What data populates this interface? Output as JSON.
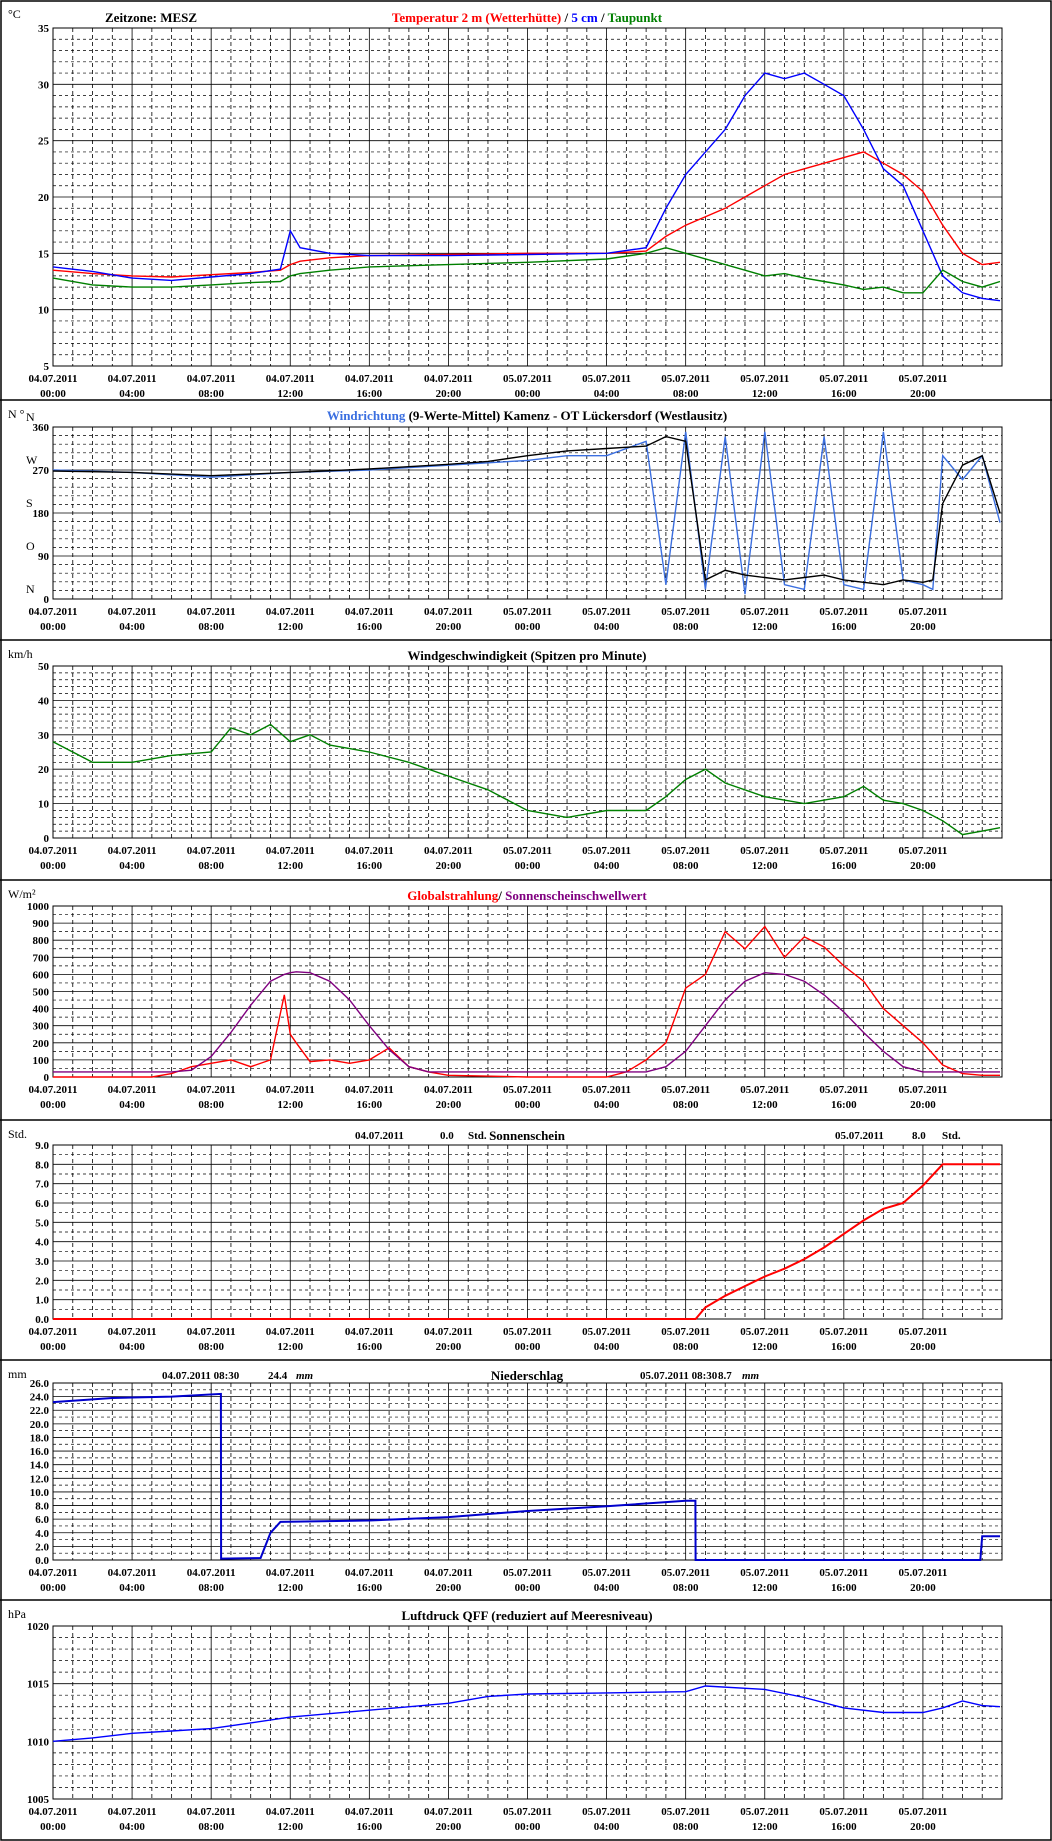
{
  "colors": {
    "temp2m": "#ff0000",
    "temp5cm": "#0000ff",
    "taupunkt": "#008000",
    "windrichtung": "#3b6fe0",
    "windrichtung_mittel": "#000000",
    "wind": "#008000",
    "global": "#ff0000",
    "schwelle": "#800080",
    "sonne": "#ff0000",
    "niederschlag": "#0000cc",
    "luftdruck": "#0000ff"
  },
  "x_tick_labels": [
    {
      "date": "04.07.2011",
      "time": "00:00"
    },
    {
      "date": "04.07.2011",
      "time": "04:00"
    },
    {
      "date": "04.07.2011",
      "time": "08:00"
    },
    {
      "date": "04.07.2011",
      "time": "12:00"
    },
    {
      "date": "04.07.2011",
      "time": "16:00"
    },
    {
      "date": "04.07.2011",
      "time": "20:00"
    },
    {
      "date": "05.07.2011",
      "time": "00:00"
    },
    {
      "date": "05.07.2011",
      "time": "04:00"
    },
    {
      "date": "05.07.2011",
      "time": "08:00"
    },
    {
      "date": "05.07.2011",
      "time": "12:00"
    },
    {
      "date": "05.07.2011",
      "time": "16:00"
    },
    {
      "date": "05.07.2011",
      "time": "20:00"
    }
  ],
  "chart_data": [
    {
      "type": "line",
      "unit": "°C",
      "zeitzone": "Zeitzone: MESZ",
      "title_parts": [
        {
          "text": "Temperatur 2 m (Wetterhütte)",
          "color": "#ff0000"
        },
        {
          "text": " / ",
          "color": "#000000"
        },
        {
          "text": "5 cm",
          "color": "#0000ff"
        },
        {
          "text": " / ",
          "color": "#000000"
        },
        {
          "text": "Taupunkt",
          "color": "#008000"
        }
      ],
      "ylim": [
        5,
        35
      ],
      "yticks": [
        "5",
        "10",
        "15",
        "20",
        "25",
        "30",
        "35"
      ],
      "x_hours": [
        0,
        2,
        4,
        6,
        8,
        10,
        11.5,
        12,
        12.5,
        14,
        16,
        20,
        24,
        28,
        30,
        31,
        32,
        34,
        35,
        36,
        37,
        38,
        39,
        40,
        41,
        42,
        43,
        44,
        45,
        46,
        47,
        47.9
      ],
      "series": [
        {
          "name": "Temperatur 2 m (Wetterhütte)",
          "values": [
            13.5,
            13.2,
            13.0,
            12.9,
            13.1,
            13.3,
            13.5,
            14.0,
            14.3,
            14.6,
            14.8,
            14.9,
            15.0,
            15.0,
            15.2,
            16.5,
            17.5,
            19.0,
            20.0,
            21.0,
            22.0,
            22.5,
            23.0,
            23.5,
            24.0,
            23.0,
            22.0,
            20.5,
            17.5,
            15.0,
            14.0,
            14.2
          ]
        },
        {
          "name": "5 cm",
          "values": [
            13.8,
            13.4,
            12.8,
            12.6,
            12.9,
            13.2,
            13.6,
            17.0,
            15.5,
            15.0,
            14.8,
            14.8,
            14.9,
            15.0,
            15.5,
            19.0,
            22.0,
            26.0,
            29.0,
            31.0,
            30.5,
            31.0,
            30.0,
            29.0,
            26.0,
            22.5,
            21.0,
            17.0,
            13.0,
            11.5,
            11.0,
            10.8
          ]
        },
        {
          "name": "Taupunkt",
          "values": [
            12.8,
            12.2,
            12.0,
            12.0,
            12.2,
            12.4,
            12.5,
            13.0,
            13.2,
            13.5,
            13.8,
            14.0,
            14.2,
            14.5,
            15.0,
            15.5,
            15.0,
            14.0,
            13.5,
            13.0,
            13.2,
            12.8,
            12.5,
            12.2,
            11.8,
            12.0,
            11.5,
            11.5,
            13.5,
            12.5,
            12.0,
            12.5
          ]
        }
      ]
    },
    {
      "type": "line",
      "unit": "N °",
      "title_parts": [
        {
          "text": "Windrichtung",
          "color": "#3b6fe0"
        },
        {
          "text": " (9-Werte-Mittel)",
          "color": "#000000"
        },
        {
          "text": "          Kamenz - OT Lückersdorf (Westlausitz)",
          "color": "#000000"
        }
      ],
      "ylim": [
        0,
        360
      ],
      "yticks": [
        "0",
        "90",
        "180",
        "270",
        "360"
      ],
      "compass": [
        "N",
        "O",
        "S",
        "W",
        "N"
      ],
      "x_hours": [
        0,
        4,
        8,
        12,
        16,
        20,
        22,
        24,
        26,
        28,
        30,
        31,
        32,
        33,
        34,
        35,
        36,
        37,
        38,
        39,
        40,
        41,
        42,
        43,
        44,
        44.5,
        45,
        46,
        47,
        47.9
      ],
      "series": [
        {
          "name": "Windrichtung",
          "values": [
            270,
            265,
            255,
            265,
            270,
            280,
            285,
            290,
            300,
            300,
            330,
            30,
            350,
            20,
            340,
            10,
            350,
            30,
            20,
            340,
            30,
            20,
            350,
            40,
            30,
            20,
            300,
            250,
            300,
            160
          ]
        },
        {
          "name": "9-Werte-Mittel",
          "values": [
            268,
            265,
            258,
            265,
            272,
            282,
            288,
            300,
            310,
            315,
            320,
            340,
            330,
            40,
            60,
            50,
            45,
            40,
            45,
            50,
            40,
            35,
            30,
            40,
            35,
            40,
            200,
            280,
            300,
            180
          ]
        }
      ]
    },
    {
      "type": "line",
      "unit": "km/h",
      "title_parts": [
        {
          "text": "Windgeschwindigkeit (Spitzen pro Minute)",
          "color": "#000000"
        }
      ],
      "ylim": [
        0,
        50
      ],
      "yticks": [
        "0",
        "10",
        "20",
        "30",
        "40",
        "50"
      ],
      "x_hours": [
        0,
        2,
        4,
        6,
        8,
        9,
        10,
        11,
        12,
        13,
        14,
        16,
        18,
        20,
        22,
        24,
        26,
        28,
        30,
        31,
        32,
        33,
        34,
        36,
        38,
        40,
        41,
        42,
        43,
        44,
        45,
        46,
        47,
        47.9
      ],
      "series": [
        {
          "name": "Windgeschwindigkeit",
          "values": [
            28,
            22,
            22,
            24,
            25,
            32,
            30,
            33,
            28,
            30,
            27,
            25,
            22,
            18,
            14,
            8,
            6,
            8,
            8,
            12,
            17,
            20,
            16,
            12,
            10,
            12,
            15,
            11,
            10,
            8,
            5,
            1,
            2,
            3
          ]
        }
      ]
    },
    {
      "type": "line",
      "unit": "W/m²",
      "title_parts": [
        {
          "text": "Globalstrahlung",
          "color": "#ff0000"
        },
        {
          "text": "/ ",
          "color": "#000000"
        },
        {
          "text": "Sonnenscheinschwellwert",
          "color": "#800080"
        }
      ],
      "ylim": [
        0,
        1000
      ],
      "yticks": [
        "0",
        "100",
        "200",
        "300",
        "400",
        "500",
        "600",
        "700",
        "800",
        "900",
        "1000"
      ],
      "x_hours": [
        0,
        5,
        6,
        7,
        8,
        9,
        10,
        11,
        11.7,
        12,
        12.3,
        13,
        14,
        15,
        16,
        17,
        18,
        19,
        20,
        24,
        28,
        29,
        30,
        31,
        32,
        33,
        34,
        35,
        36,
        37,
        38,
        39,
        40,
        41,
        42,
        43,
        44,
        45,
        46,
        47,
        47.9
      ],
      "series": [
        {
          "name": "Globalstrahlung",
          "values": [
            0,
            0,
            20,
            60,
            80,
            100,
            60,
            100,
            480,
            250,
            200,
            90,
            100,
            80,
            100,
            170,
            60,
            30,
            10,
            0,
            0,
            30,
            100,
            200,
            520,
            600,
            850,
            750,
            880,
            700,
            820,
            760,
            650,
            560,
            400,
            300,
            200,
            70,
            20,
            10,
            10
          ]
        },
        {
          "name": "Sonnenscheinschwellwert",
          "values": [
            30,
            30,
            30,
            40,
            120,
            260,
            420,
            560,
            600,
            610,
            615,
            610,
            560,
            450,
            300,
            160,
            60,
            30,
            30,
            30,
            30,
            30,
            30,
            60,
            150,
            300,
            450,
            560,
            610,
            600,
            560,
            480,
            380,
            260,
            150,
            60,
            30,
            30,
            30,
            30,
            30
          ]
        }
      ]
    },
    {
      "type": "line",
      "unit": "Std.",
      "title_parts": [
        {
          "text": "Sonnenschein",
          "color": "#000000"
        }
      ],
      "annotations": [
        {
          "date": "04.07.2011",
          "value": "0.0",
          "unit": "Std."
        },
        {
          "date": "05.07.2011",
          "value": "8.0",
          "unit": "Std."
        }
      ],
      "ylim": [
        0,
        9
      ],
      "yticks": [
        "0.0",
        "1.0",
        "2.0",
        "3.0",
        "4.0",
        "5.0",
        "6.0",
        "7.0",
        "8.0",
        "9.0"
      ],
      "x_hours": [
        0,
        24,
        32.5,
        33,
        34,
        35,
        36,
        37,
        38,
        39,
        40,
        41,
        42,
        43,
        44,
        45,
        46,
        47.9
      ],
      "series": [
        {
          "name": "Sonnenschein",
          "values": [
            0,
            0,
            0,
            0.6,
            1.2,
            1.7,
            2.2,
            2.6,
            3.1,
            3.7,
            4.4,
            5.1,
            5.7,
            6.0,
            6.9,
            8.0,
            8.0,
            8.0
          ]
        }
      ]
    },
    {
      "type": "line",
      "unit": "mm",
      "title_parts": [
        {
          "text": "Niederschlag",
          "color": "#000000"
        }
      ],
      "annotations": [
        {
          "date": "04.07.2011 08:30",
          "value": "24.4",
          "unit": "mm"
        },
        {
          "date": "05.07.2011 08:30",
          "value": "8.7",
          "unit": "mm"
        }
      ],
      "ylim": [
        0,
        26
      ],
      "yticks": [
        "0.0",
        "2.0",
        "4.0",
        "6.0",
        "8.0",
        "10.0",
        "12.0",
        "14.0",
        "16.0",
        "18.0",
        "20.0",
        "22.0",
        "24.0",
        "26.0"
      ],
      "x_hours": [
        0,
        3,
        6,
        8.49,
        8.5,
        10.5,
        11.0,
        11.5,
        16,
        20,
        24,
        28,
        32,
        32.49,
        32.5,
        46.9,
        47,
        47.9
      ],
      "series": [
        {
          "name": "Niederschlag",
          "values": [
            23.2,
            23.8,
            24.0,
            24.4,
            0.2,
            0.3,
            4.0,
            5.6,
            5.8,
            6.3,
            7.2,
            7.9,
            8.7,
            8.7,
            0,
            0,
            3.5,
            3.5
          ]
        }
      ]
    },
    {
      "type": "line",
      "unit": "hPa",
      "title_parts": [
        {
          "text": "Luftdruck QFF (reduziert auf Meeresniveau)",
          "color": "#000000"
        }
      ],
      "ylim": [
        1005,
        1020
      ],
      "yticks": [
        "1005",
        "1010",
        "1015",
        "1020"
      ],
      "x_hours": [
        0,
        2,
        4,
        6,
        8,
        10,
        12,
        16,
        20,
        22,
        24,
        28,
        32,
        33,
        36,
        38,
        40,
        42,
        44,
        45,
        46,
        47,
        47.9
      ],
      "series": [
        {
          "name": "Luftdruck QFF",
          "values": [
            1010.0,
            1010.3,
            1010.7,
            1010.9,
            1011.1,
            1011.6,
            1012.1,
            1012.7,
            1013.3,
            1013.9,
            1014.1,
            1014.2,
            1014.3,
            1014.8,
            1014.5,
            1013.8,
            1012.9,
            1012.5,
            1012.5,
            1012.9,
            1013.5,
            1013.1,
            1013.0
          ]
        }
      ]
    }
  ]
}
